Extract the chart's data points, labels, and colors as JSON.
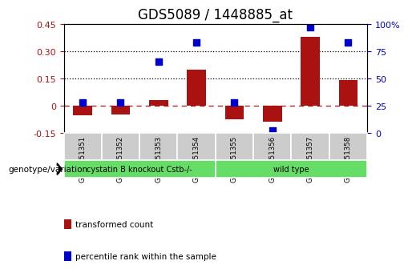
{
  "title": "GDS5089 / 1448885_at",
  "samples": [
    "GSM1151351",
    "GSM1151352",
    "GSM1151353",
    "GSM1151354",
    "GSM1151355",
    "GSM1151356",
    "GSM1151357",
    "GSM1151358"
  ],
  "transformed_count": [
    -0.055,
    -0.05,
    0.03,
    0.2,
    -0.075,
    -0.09,
    0.38,
    0.14
  ],
  "percentile_rank": [
    28,
    28,
    65,
    83,
    28,
    2,
    97,
    83
  ],
  "groups": [
    {
      "label": "cystatin B knockout Cstb-/-",
      "start": 0,
      "end": 3
    },
    {
      "label": "wild type",
      "start": 4,
      "end": 7
    }
  ],
  "bar_color": "#aa1111",
  "dot_color": "#0000cc",
  "ylim_left": [
    -0.15,
    0.45
  ],
  "ylim_right": [
    0,
    100
  ],
  "yticks_left": [
    -0.15,
    0.0,
    0.15,
    0.3,
    0.45
  ],
  "yticks_right": [
    0,
    25,
    50,
    75,
    100
  ],
  "ytick_labels_left": [
    "-0.15",
    "0",
    "0.15",
    "0.30",
    "0.45"
  ],
  "ytick_labels_right": [
    "0",
    "25",
    "50",
    "75",
    "100%"
  ],
  "hlines_dotted": [
    0.15,
    0.3
  ],
  "bar_width": 0.5,
  "dot_size": 40,
  "sample_cell_color": "#cccccc",
  "group_cell_color": "#66dd66",
  "title_fontsize": 12,
  "tick_fontsize": 8,
  "genotype_label": "genotype/variation",
  "legend_items": [
    {
      "label": "transformed count",
      "color": "#aa1111"
    },
    {
      "label": "percentile rank within the sample",
      "color": "#0000cc"
    }
  ]
}
